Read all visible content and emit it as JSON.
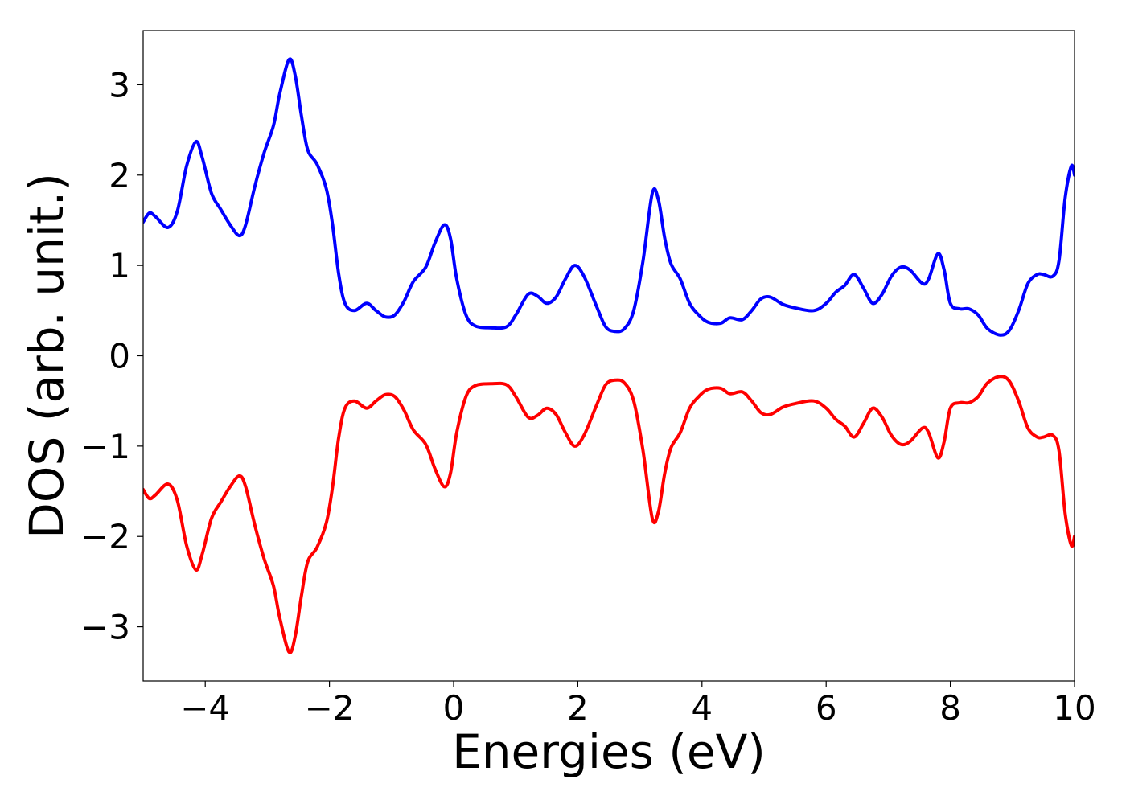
{
  "chart_data": {
    "type": "line",
    "title": "",
    "xlabel": "Energies (eV)",
    "ylabel": "DOS (arb. unit.)",
    "xlim": [
      -5,
      10
    ],
    "ylim": [
      -3.6,
      3.6
    ],
    "grid": false,
    "legend": "none",
    "x_ticks": [
      {
        "value": -4,
        "label": "−4"
      },
      {
        "value": -2,
        "label": "−2"
      },
      {
        "value": 0,
        "label": "0"
      },
      {
        "value": 2,
        "label": "2"
      },
      {
        "value": 4,
        "label": "4"
      },
      {
        "value": 6,
        "label": "6"
      },
      {
        "value": 8,
        "label": "8"
      },
      {
        "value": 10,
        "label": "10"
      }
    ],
    "y_ticks": [
      {
        "value": 3,
        "label": "3"
      },
      {
        "value": 2,
        "label": "2"
      },
      {
        "value": 1,
        "label": "1"
      },
      {
        "value": 0,
        "label": "0"
      },
      {
        "value": -1,
        "label": "−1"
      },
      {
        "value": -2,
        "label": "−2"
      },
      {
        "value": -3,
        "label": "−3"
      }
    ],
    "series": [
      {
        "color": "#0000ff",
        "points": [
          [
            -5.0,
            1.48
          ],
          [
            -4.9,
            1.58
          ],
          [
            -4.8,
            1.54
          ],
          [
            -4.6,
            1.42
          ],
          [
            -4.45,
            1.6
          ],
          [
            -4.3,
            2.1
          ],
          [
            -4.15,
            2.37
          ],
          [
            -4.05,
            2.2
          ],
          [
            -3.9,
            1.8
          ],
          [
            -3.75,
            1.62
          ],
          [
            -3.6,
            1.45
          ],
          [
            -3.45,
            1.33
          ],
          [
            -3.35,
            1.45
          ],
          [
            -3.2,
            1.88
          ],
          [
            -3.05,
            2.25
          ],
          [
            -2.9,
            2.55
          ],
          [
            -2.8,
            2.9
          ],
          [
            -2.65,
            3.28
          ],
          [
            -2.55,
            3.1
          ],
          [
            -2.45,
            2.65
          ],
          [
            -2.35,
            2.28
          ],
          [
            -2.2,
            2.12
          ],
          [
            -2.05,
            1.85
          ],
          [
            -1.95,
            1.45
          ],
          [
            -1.85,
            0.9
          ],
          [
            -1.75,
            0.58
          ],
          [
            -1.6,
            0.5
          ],
          [
            -1.4,
            0.58
          ],
          [
            -1.25,
            0.5
          ],
          [
            -1.1,
            0.43
          ],
          [
            -0.95,
            0.45
          ],
          [
            -0.8,
            0.6
          ],
          [
            -0.65,
            0.82
          ],
          [
            -0.45,
            0.98
          ],
          [
            -0.3,
            1.25
          ],
          [
            -0.15,
            1.45
          ],
          [
            -0.05,
            1.3
          ],
          [
            0.05,
            0.85
          ],
          [
            0.2,
            0.45
          ],
          [
            0.35,
            0.33
          ],
          [
            0.6,
            0.31
          ],
          [
            0.85,
            0.32
          ],
          [
            1.0,
            0.45
          ],
          [
            1.2,
            0.68
          ],
          [
            1.35,
            0.66
          ],
          [
            1.5,
            0.58
          ],
          [
            1.65,
            0.65
          ],
          [
            1.8,
            0.85
          ],
          [
            1.95,
            1.0
          ],
          [
            2.1,
            0.88
          ],
          [
            2.3,
            0.55
          ],
          [
            2.45,
            0.32
          ],
          [
            2.6,
            0.27
          ],
          [
            2.75,
            0.3
          ],
          [
            2.9,
            0.5
          ],
          [
            3.05,
            1.05
          ],
          [
            3.2,
            1.8
          ],
          [
            3.3,
            1.72
          ],
          [
            3.4,
            1.3
          ],
          [
            3.5,
            1.02
          ],
          [
            3.65,
            0.85
          ],
          [
            3.8,
            0.58
          ],
          [
            3.95,
            0.45
          ],
          [
            4.1,
            0.37
          ],
          [
            4.3,
            0.36
          ],
          [
            4.45,
            0.42
          ],
          [
            4.65,
            0.4
          ],
          [
            4.8,
            0.5
          ],
          [
            4.95,
            0.63
          ],
          [
            5.1,
            0.65
          ],
          [
            5.3,
            0.57
          ],
          [
            5.5,
            0.53
          ],
          [
            5.8,
            0.5
          ],
          [
            6.0,
            0.58
          ],
          [
            6.15,
            0.7
          ],
          [
            6.3,
            0.78
          ],
          [
            6.45,
            0.9
          ],
          [
            6.6,
            0.75
          ],
          [
            6.75,
            0.58
          ],
          [
            6.9,
            0.68
          ],
          [
            7.05,
            0.88
          ],
          [
            7.2,
            0.98
          ],
          [
            7.35,
            0.95
          ],
          [
            7.55,
            0.8
          ],
          [
            7.65,
            0.85
          ],
          [
            7.8,
            1.13
          ],
          [
            7.9,
            0.95
          ],
          [
            8.0,
            0.58
          ],
          [
            8.15,
            0.52
          ],
          [
            8.3,
            0.52
          ],
          [
            8.45,
            0.45
          ],
          [
            8.6,
            0.3
          ],
          [
            8.8,
            0.23
          ],
          [
            8.95,
            0.28
          ],
          [
            9.1,
            0.5
          ],
          [
            9.25,
            0.8
          ],
          [
            9.4,
            0.9
          ],
          [
            9.5,
            0.9
          ],
          [
            9.65,
            0.88
          ],
          [
            9.75,
            1.05
          ],
          [
            9.85,
            1.75
          ],
          [
            9.95,
            2.1
          ],
          [
            10.0,
            2.0
          ]
        ]
      },
      {
        "color": "#ff0000",
        "points": [
          [
            -5.0,
            -1.48
          ],
          [
            -4.9,
            -1.58
          ],
          [
            -4.8,
            -1.54
          ],
          [
            -4.6,
            -1.42
          ],
          [
            -4.45,
            -1.6
          ],
          [
            -4.3,
            -2.1
          ],
          [
            -4.15,
            -2.37
          ],
          [
            -4.05,
            -2.2
          ],
          [
            -3.9,
            -1.8
          ],
          [
            -3.75,
            -1.62
          ],
          [
            -3.6,
            -1.45
          ],
          [
            -3.45,
            -1.33
          ],
          [
            -3.35,
            -1.45
          ],
          [
            -3.2,
            -1.88
          ],
          [
            -3.05,
            -2.25
          ],
          [
            -2.9,
            -2.55
          ],
          [
            -2.8,
            -2.9
          ],
          [
            -2.65,
            -3.28
          ],
          [
            -2.55,
            -3.1
          ],
          [
            -2.45,
            -2.65
          ],
          [
            -2.35,
            -2.28
          ],
          [
            -2.2,
            -2.12
          ],
          [
            -2.05,
            -1.85
          ],
          [
            -1.95,
            -1.45
          ],
          [
            -1.85,
            -0.9
          ],
          [
            -1.75,
            -0.58
          ],
          [
            -1.6,
            -0.5
          ],
          [
            -1.4,
            -0.58
          ],
          [
            -1.25,
            -0.5
          ],
          [
            -1.1,
            -0.43
          ],
          [
            -0.95,
            -0.45
          ],
          [
            -0.8,
            -0.6
          ],
          [
            -0.65,
            -0.82
          ],
          [
            -0.45,
            -0.98
          ],
          [
            -0.3,
            -1.25
          ],
          [
            -0.15,
            -1.45
          ],
          [
            -0.05,
            -1.3
          ],
          [
            0.05,
            -0.85
          ],
          [
            0.2,
            -0.45
          ],
          [
            0.35,
            -0.33
          ],
          [
            0.6,
            -0.31
          ],
          [
            0.85,
            -0.32
          ],
          [
            1.0,
            -0.45
          ],
          [
            1.2,
            -0.68
          ],
          [
            1.35,
            -0.66
          ],
          [
            1.5,
            -0.58
          ],
          [
            1.65,
            -0.65
          ],
          [
            1.8,
            -0.85
          ],
          [
            1.95,
            -1.0
          ],
          [
            2.1,
            -0.88
          ],
          [
            2.3,
            -0.55
          ],
          [
            2.45,
            -0.32
          ],
          [
            2.6,
            -0.27
          ],
          [
            2.75,
            -0.3
          ],
          [
            2.9,
            -0.5
          ],
          [
            3.05,
            -1.05
          ],
          [
            3.2,
            -1.8
          ],
          [
            3.3,
            -1.72
          ],
          [
            3.4,
            -1.3
          ],
          [
            3.5,
            -1.02
          ],
          [
            3.65,
            -0.85
          ],
          [
            3.8,
            -0.58
          ],
          [
            3.95,
            -0.45
          ],
          [
            4.1,
            -0.37
          ],
          [
            4.3,
            -0.36
          ],
          [
            4.45,
            -0.42
          ],
          [
            4.65,
            -0.4
          ],
          [
            4.8,
            -0.5
          ],
          [
            4.95,
            -0.63
          ],
          [
            5.1,
            -0.65
          ],
          [
            5.3,
            -0.57
          ],
          [
            5.5,
            -0.53
          ],
          [
            5.8,
            -0.5
          ],
          [
            6.0,
            -0.58
          ],
          [
            6.15,
            -0.7
          ],
          [
            6.3,
            -0.78
          ],
          [
            6.45,
            -0.9
          ],
          [
            6.6,
            -0.75
          ],
          [
            6.75,
            -0.58
          ],
          [
            6.9,
            -0.68
          ],
          [
            7.05,
            -0.88
          ],
          [
            7.2,
            -0.98
          ],
          [
            7.35,
            -0.95
          ],
          [
            7.55,
            -0.8
          ],
          [
            7.65,
            -0.85
          ],
          [
            7.8,
            -1.13
          ],
          [
            7.9,
            -0.95
          ],
          [
            8.0,
            -0.58
          ],
          [
            8.15,
            -0.52
          ],
          [
            8.3,
            -0.52
          ],
          [
            8.45,
            -0.45
          ],
          [
            8.6,
            -0.3
          ],
          [
            8.8,
            -0.23
          ],
          [
            8.95,
            -0.28
          ],
          [
            9.1,
            -0.5
          ],
          [
            9.25,
            -0.8
          ],
          [
            9.4,
            -0.9
          ],
          [
            9.5,
            -0.9
          ],
          [
            9.65,
            -0.88
          ],
          [
            9.75,
            -1.05
          ],
          [
            9.85,
            -1.75
          ],
          [
            9.95,
            -2.1
          ],
          [
            10.0,
            -2.0
          ]
        ]
      }
    ]
  }
}
